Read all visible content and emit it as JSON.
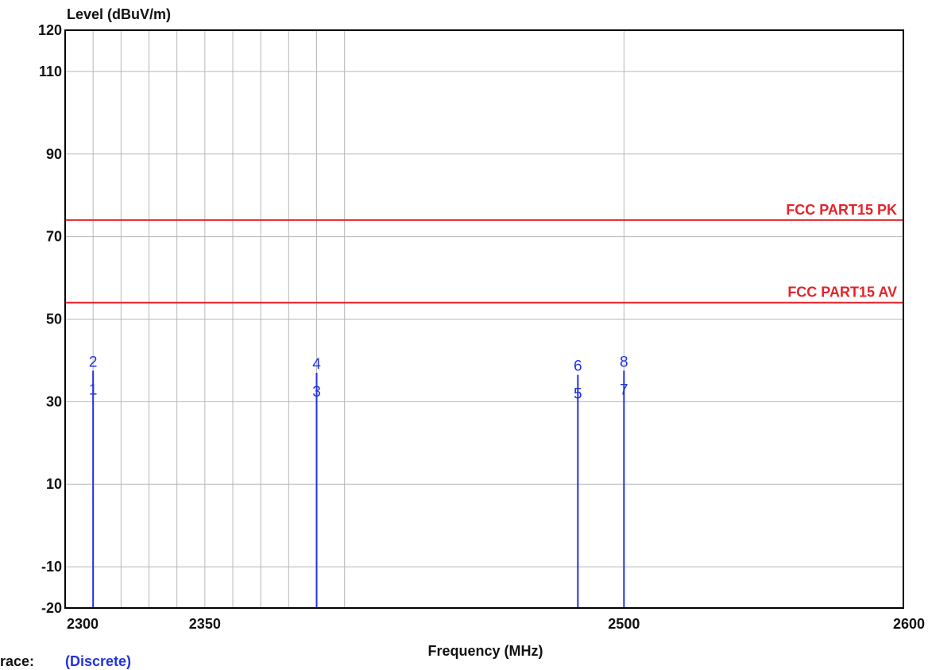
{
  "chart_data": {
    "type": "line",
    "title": "",
    "ylabel": "Level (dBuV/m)",
    "xlabel": "Frequency (MHz)",
    "x_tick_labels": [
      "2300",
      "2350",
      "2500",
      "2600"
    ],
    "y_tick_labels": [
      "120",
      "110",
      "90",
      "70",
      "50",
      "30",
      "10",
      "-10",
      "-20"
    ],
    "xlim": [
      2300,
      2600
    ],
    "ylim": [
      -20,
      120
    ],
    "grid": true,
    "limit_lines": [
      {
        "name": "FCC PART15 PK",
        "value": 74,
        "color": "#e3242b"
      },
      {
        "name": "FCC PART15 AV",
        "value": 54,
        "color": "#e3242b"
      }
    ],
    "series": [
      {
        "type": "discrete",
        "color": "#2233dd",
        "points": [
          {
            "x": 2310,
            "y": 37.5,
            "labels": [
              "2",
              "1"
            ]
          },
          {
            "x": 2390,
            "y": 37.0,
            "labels": [
              "4",
              "3"
            ]
          },
          {
            "x": 2483.5,
            "y": 36.5,
            "labels": [
              "6",
              "5"
            ]
          },
          {
            "x": 2500,
            "y": 37.5,
            "labels": [
              "8",
              "7"
            ]
          }
        ]
      }
    ]
  },
  "trace": {
    "label": "race:",
    "value": "(Discrete)"
  }
}
